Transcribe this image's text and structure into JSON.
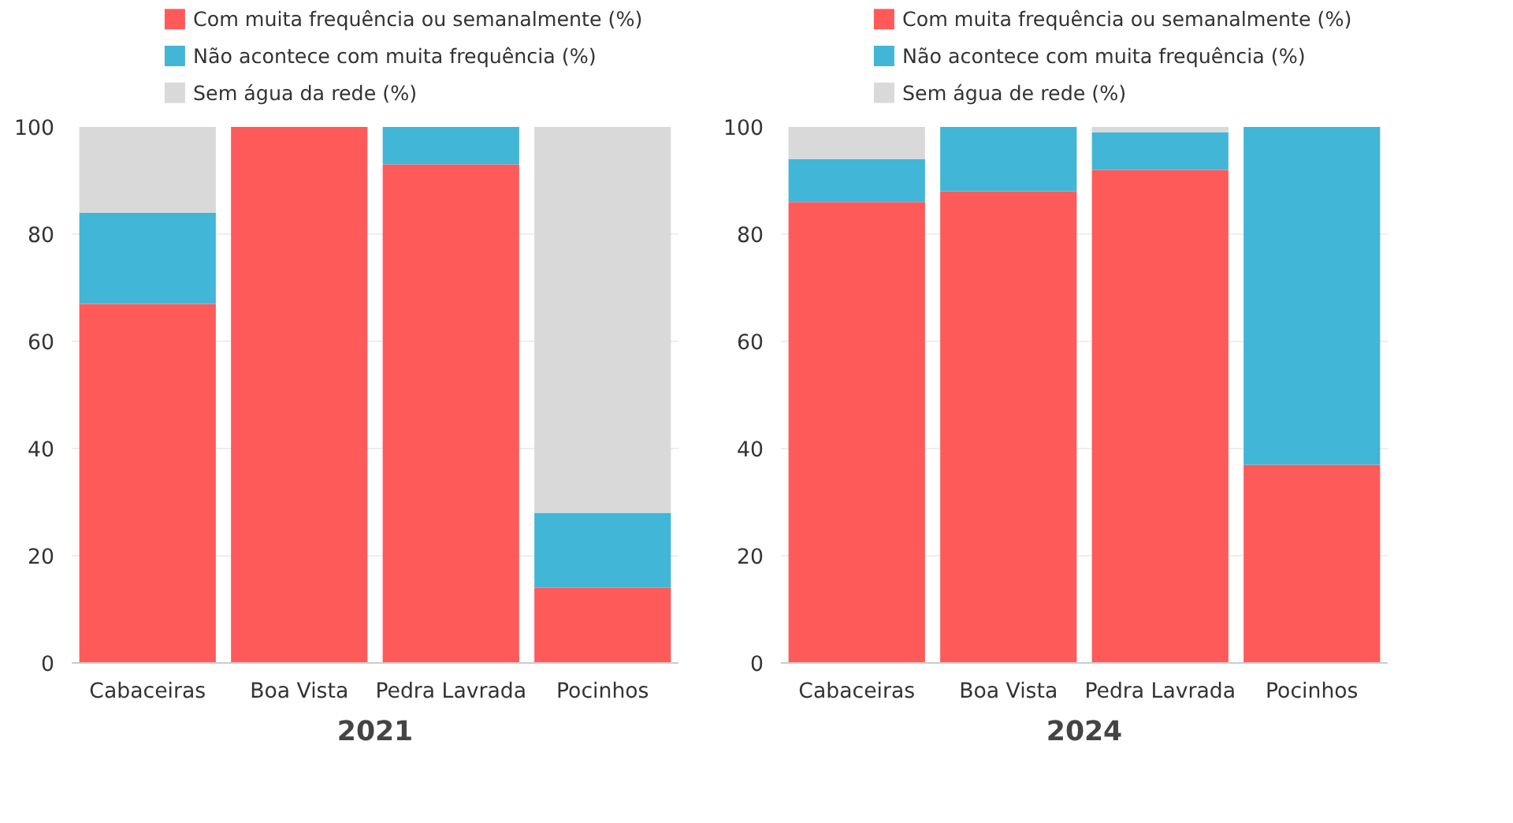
{
  "chart_data": [
    {
      "type": "bar",
      "stacked": true,
      "title": "2021",
      "categories": [
        "Cabaceiras",
        "Boa Vista",
        "Pedra Lavrada",
        "Pocinhos"
      ],
      "ylim": [
        0,
        100
      ],
      "yticks": [
        0,
        20,
        40,
        60,
        80,
        100
      ],
      "grid": "y",
      "legend": "top",
      "series": [
        {
          "name": "Com muita frequência ou semanalmente (%)",
          "color": "#ff5a5a",
          "values": [
            67,
            100,
            93,
            14
          ]
        },
        {
          "name": "Não acontece com muita frequência (%)",
          "color": "#42b6d6",
          "values": [
            17,
            0,
            7,
            14
          ]
        },
        {
          "name": "Sem água da rede (%)",
          "color": "#d9d9d9",
          "values": [
            16,
            0,
            0,
            72
          ]
        }
      ]
    },
    {
      "type": "bar",
      "stacked": true,
      "title": "2024",
      "categories": [
        "Cabaceiras",
        "Boa Vista",
        "Pedra Lavrada",
        "Pocinhos"
      ],
      "ylim": [
        0,
        100
      ],
      "yticks": [
        0,
        20,
        40,
        60,
        80,
        100
      ],
      "grid": "y",
      "legend": "top",
      "series": [
        {
          "name": "Com muita frequência ou semanalmente (%)",
          "color": "#ff5a5a",
          "values": [
            86,
            88,
            92,
            37
          ]
        },
        {
          "name": "Não acontece com muita frequência (%)",
          "color": "#42b6d6",
          "values": [
            8,
            12,
            7,
            63
          ]
        },
        {
          "name": "Sem água de rede (%)",
          "color": "#d9d9d9",
          "values": [
            6,
            0,
            1,
            0
          ]
        }
      ]
    }
  ]
}
